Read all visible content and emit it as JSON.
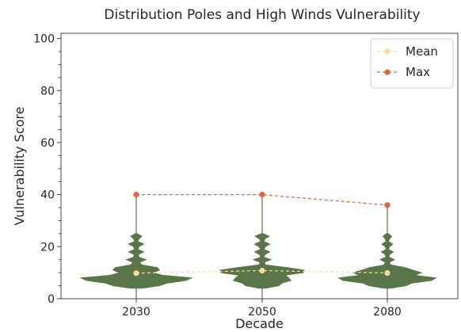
{
  "chart_data": {
    "type": "violin",
    "title": "Distribution Poles and High Winds Vulnerability",
    "xlabel": "Decade",
    "ylabel": "Vulnerability Score",
    "categories": [
      "2030",
      "2050",
      "2080"
    ],
    "ylim": [
      0,
      102
    ],
    "yticks": [
      0,
      20,
      40,
      60,
      80,
      100
    ],
    "grid": false,
    "legend_position": "top-right",
    "violin_color": "#5a7547",
    "violins": [
      {
        "category": "2030",
        "min": 0,
        "max": 40,
        "density": [
          [
            4,
            0.1
          ],
          [
            5,
            0.42
          ],
          [
            6,
            0.56
          ],
          [
            7,
            0.9
          ],
          [
            8,
            1.0
          ],
          [
            9,
            0.48
          ],
          [
            10,
            0.3
          ],
          [
            11,
            0.42
          ],
          [
            12,
            0.38
          ],
          [
            13,
            0.1
          ],
          [
            14,
            0.06
          ],
          [
            15,
            0.18
          ],
          [
            16,
            0.05
          ],
          [
            17,
            0.04
          ],
          [
            18,
            0.14
          ],
          [
            19,
            0.03
          ],
          [
            20,
            0.05
          ],
          [
            21,
            0.14
          ],
          [
            22,
            0.03
          ],
          [
            23,
            0.05
          ],
          [
            24,
            0.1
          ],
          [
            25,
            0.02
          ]
        ]
      },
      {
        "category": "2050",
        "min": 0,
        "max": 40,
        "density": [
          [
            4,
            0.06
          ],
          [
            5,
            0.3
          ],
          [
            6,
            0.36
          ],
          [
            7,
            0.52
          ],
          [
            8,
            0.48
          ],
          [
            9,
            0.42
          ],
          [
            10,
            0.74
          ],
          [
            11,
            0.76
          ],
          [
            12,
            0.45
          ],
          [
            13,
            0.06
          ],
          [
            14,
            0.04
          ],
          [
            15,
            0.16
          ],
          [
            16,
            0.03
          ],
          [
            17,
            0.05
          ],
          [
            18,
            0.14
          ],
          [
            19,
            0.03
          ],
          [
            20,
            0.06
          ],
          [
            21,
            0.14
          ],
          [
            22,
            0.03
          ],
          [
            23,
            0.05
          ],
          [
            24,
            0.13
          ],
          [
            25,
            0.02
          ]
        ]
      },
      {
        "category": "2080",
        "min": 0,
        "max": 36,
        "density": [
          [
            4,
            0.06
          ],
          [
            5,
            0.34
          ],
          [
            6,
            0.44
          ],
          [
            7,
            0.8
          ],
          [
            8,
            0.88
          ],
          [
            9,
            0.5
          ],
          [
            10,
            0.62
          ],
          [
            11,
            0.46
          ],
          [
            12,
            0.32
          ],
          [
            13,
            0.06
          ],
          [
            14,
            0.04
          ],
          [
            15,
            0.13
          ],
          [
            16,
            0.03
          ],
          [
            17,
            0.04
          ],
          [
            18,
            0.11
          ],
          [
            19,
            0.02
          ],
          [
            20,
            0.04
          ],
          [
            21,
            0.1
          ],
          [
            22,
            0.02
          ],
          [
            23,
            0.04
          ],
          [
            24,
            0.08
          ],
          [
            25,
            0.02
          ]
        ]
      }
    ],
    "series": [
      {
        "name": "Mean",
        "color": "#f3dca6",
        "marker": "circle",
        "line": "dashed",
        "values": [
          9.8,
          10.8,
          9.9
        ]
      },
      {
        "name": "Max",
        "color": "#e1653a",
        "marker": "circle",
        "line": "dashed",
        "values": [
          40,
          40,
          36
        ]
      }
    ]
  }
}
